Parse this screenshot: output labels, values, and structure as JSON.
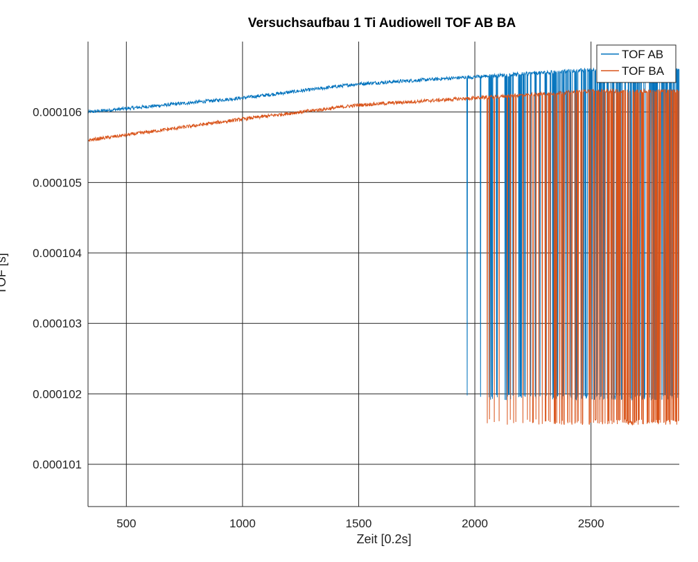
{
  "chart_data": {
    "type": "line",
    "title": "Versuchsaufbau 1 Ti Audiowell TOF AB BA",
    "xlabel": "Zeit [0.2s]",
    "ylabel": "TOF [s]",
    "xlim": [
      335,
      2880
    ],
    "ylim": [
      0.0001004,
      0.000107
    ],
    "x_ticks": [
      500,
      1000,
      1500,
      2000,
      2500
    ],
    "x_tick_labels": [
      "500",
      "1000",
      "1500",
      "2000",
      "2500"
    ],
    "y_ticks": [
      0.000101,
      0.000102,
      0.000103,
      0.000104,
      0.000105,
      0.000106
    ],
    "y_tick_labels": [
      "0.000101",
      "0.000102",
      "0.000103",
      "0.000104",
      "0.000105",
      "0.000106"
    ],
    "grid": true,
    "legend_position": "top-right",
    "series": [
      {
        "name": "TOF AB",
        "color": "#0072BD",
        "trend": {
          "x": [
            335,
            1000,
            1500,
            2000,
            2500,
            2880
          ],
          "y": [
            0.000106,
            0.0001062,
            0.0001064,
            0.0001065,
            0.0001066,
            0.0001066
          ]
        },
        "noise_amplitude": 2.5e-08,
        "dropout_region": {
          "x_start": 1965,
          "x_end": 2880,
          "low_value": 0.00010195
        }
      },
      {
        "name": "TOF BA",
        "color": "#D95319",
        "trend": {
          "x": [
            335,
            1000,
            1500,
            2000,
            2500,
            2880
          ],
          "y": [
            0.0001056,
            0.0001059,
            0.0001061,
            0.0001062,
            0.0001063,
            0.0001063
          ]
        },
        "noise_amplitude": 2.5e-08,
        "dropout_region": {
          "x_start": 1965,
          "x_end": 2880,
          "low_value": 0.0001016
        }
      }
    ]
  }
}
